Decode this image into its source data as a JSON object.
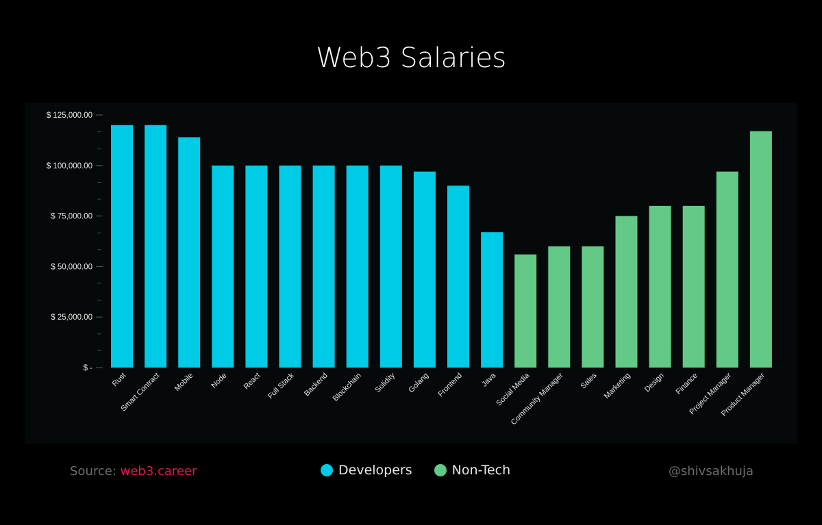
{
  "chart_data": {
    "type": "bar",
    "title": "Web3 Salaries",
    "categories": [
      "Rust",
      "Smart Contract",
      "Mobile",
      "Node",
      "React",
      "Full Stack",
      "Backend",
      "Blockchain",
      "Solidity",
      "Golang",
      "Frontend",
      "Java",
      "Social Media",
      "Community Manager",
      "Sales",
      "Marketing",
      "Design",
      "Finance",
      "Project Manager",
      "Product Manager"
    ],
    "values": [
      120000,
      120000,
      114000,
      100000,
      100000,
      100000,
      100000,
      100000,
      100000,
      97000,
      90000,
      67000,
      56000,
      60000,
      60000,
      75000,
      80000,
      80000,
      97000,
      117000
    ],
    "groups": [
      "Developers",
      "Developers",
      "Developers",
      "Developers",
      "Developers",
      "Developers",
      "Developers",
      "Developers",
      "Developers",
      "Developers",
      "Developers",
      "Developers",
      "Non-Tech",
      "Non-Tech",
      "Non-Tech",
      "Non-Tech",
      "Non-Tech",
      "Non-Tech",
      "Non-Tech",
      "Non-Tech"
    ],
    "series": [
      {
        "name": "Developers",
        "color": "#00cbe6"
      },
      {
        "name": "Non-Tech",
        "color": "#63c986"
      }
    ],
    "ylim": [
      0,
      125000
    ],
    "yticks": [
      0,
      25000,
      50000,
      75000,
      100000,
      125000
    ],
    "ytick_labels": [
      "$ -",
      "$ 25,000.00",
      "$ 50,000.00",
      "$ 75,000.00",
      "$ 100,000.00",
      "$ 125,000.00"
    ],
    "xlabel": "",
    "ylabel": "",
    "grid": false,
    "legend": "bottom"
  },
  "footer": {
    "source_label": "Source: ",
    "source_link": "web3.career",
    "handle": "@shivsakhuja"
  }
}
